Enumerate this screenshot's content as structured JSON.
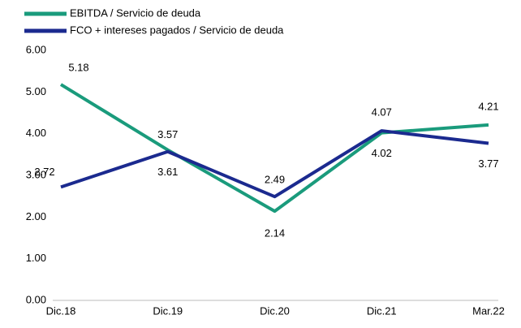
{
  "chart_data": {
    "type": "line",
    "categories": [
      "Dic.18",
      "Dic.19",
      "Dic.20",
      "Dic.21",
      "Mar.22"
    ],
    "series": [
      {
        "name": "EBITDA / Servicio de deuda",
        "color": "#1a9b7c",
        "values": [
          5.18,
          3.61,
          2.14,
          4.02,
          4.21
        ]
      },
      {
        "name": "FCO + intereses pagados / Servicio de deuda",
        "color": "#1b2a8f",
        "values": [
          2.72,
          3.57,
          2.49,
          4.07,
          3.77
        ]
      }
    ],
    "ylim": [
      0,
      6
    ],
    "yticks": [
      {
        "value": 0,
        "label": "0.00"
      },
      {
        "value": 1,
        "label": "1.00"
      },
      {
        "value": 2,
        "label": "2.00"
      },
      {
        "value": 3,
        "label": "3.00"
      },
      {
        "value": 4,
        "label": "4.00"
      },
      {
        "value": 5,
        "label": "5.00"
      },
      {
        "value": 6,
        "label": "6.00"
      }
    ],
    "legend": "top-left",
    "grid": false
  }
}
